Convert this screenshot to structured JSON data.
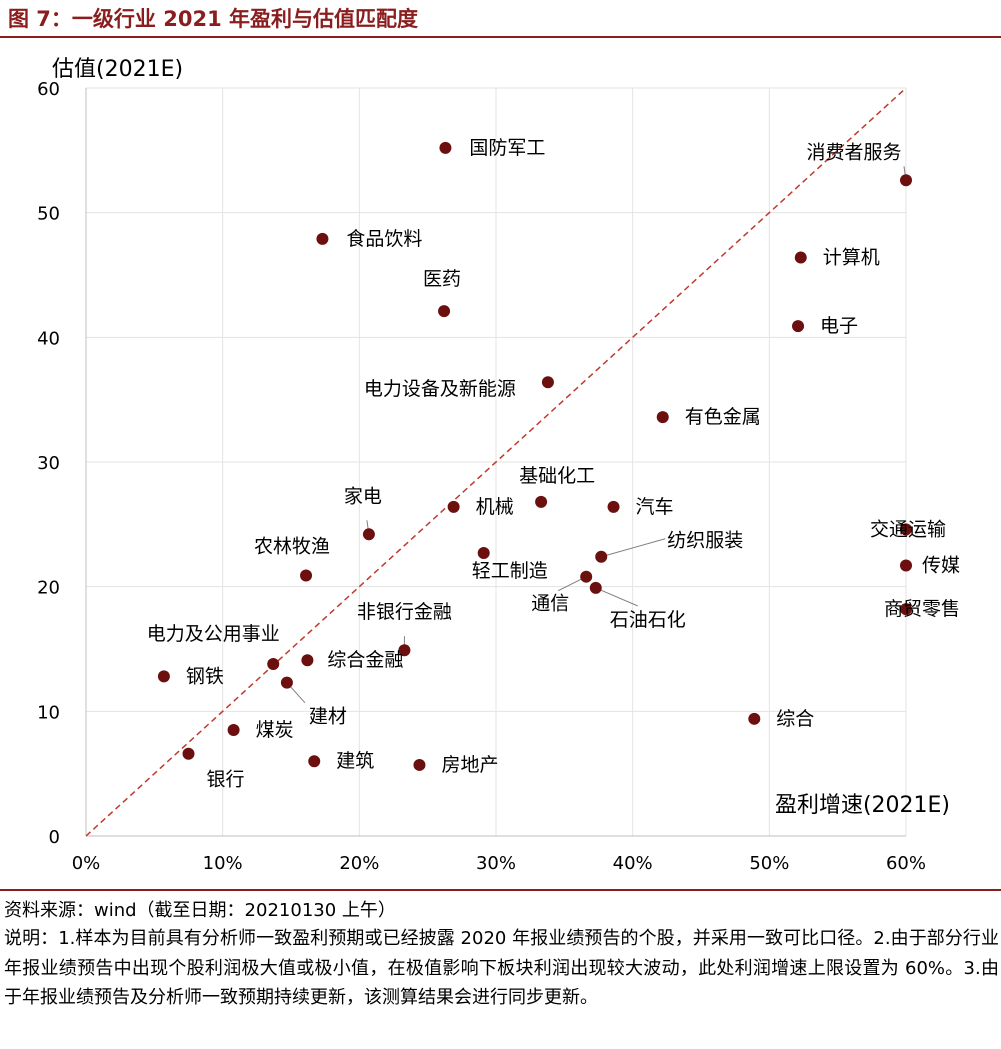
{
  "figure": {
    "title": "图 7：一级行业 2021 年盈利与估值匹配度",
    "source": "资料来源：wind（截至日期：20210130 上午）",
    "notes": "说明：1.样本为目前具有分析师一致盈利预期或已经披露 2020 年报业绩预告的个股，并采用一致可比口径。2.由于部分行业年报业绩预告中出现个股利润极大值或极小值，在极值影响下板块利润出现较大波动，此处利润增速上限设置为 60%。3.由于年报业绩预告及分析师一致预期持续更新，该测算结果会进行同步更新。"
  },
  "colors": {
    "accent": "#8a1d1d",
    "point": "#6b0f0f",
    "grid": "#e3e3e3",
    "diagonal": "#c0392b"
  },
  "chart_data": {
    "type": "scatter",
    "title": "一级行业 2021 年盈利与估值匹配度",
    "xlabel": "盈利增速(2021E)",
    "ylabel": "估值(2021E)",
    "xlim": [
      0,
      0.6
    ],
    "ylim": [
      0,
      60
    ],
    "xticks": [
      0,
      0.1,
      0.2,
      0.3,
      0.4,
      0.5,
      0.6
    ],
    "xtick_labels": [
      "0%",
      "10%",
      "20%",
      "30%",
      "40%",
      "50%",
      "60%"
    ],
    "yticks": [
      0,
      10,
      20,
      30,
      40,
      50,
      60
    ],
    "ytick_labels": [
      "0",
      "10",
      "20",
      "30",
      "40",
      "50",
      "60"
    ],
    "grid": true,
    "reference_line": {
      "style": "dashed",
      "from": [
        0,
        0
      ],
      "to": [
        0.6,
        60
      ]
    },
    "points": [
      {
        "name": "国防军工",
        "x": 0.263,
        "y": 55.2
      },
      {
        "name": "消费者服务",
        "x": 0.6,
        "y": 52.6
      },
      {
        "name": "食品饮料",
        "x": 0.173,
        "y": 47.9
      },
      {
        "name": "计算机",
        "x": 0.523,
        "y": 46.4
      },
      {
        "name": "医药",
        "x": 0.262,
        "y": 42.1
      },
      {
        "name": "电子",
        "x": 0.521,
        "y": 40.9
      },
      {
        "name": "电力设备及新能源",
        "x": 0.338,
        "y": 36.4
      },
      {
        "name": "有色金属",
        "x": 0.422,
        "y": 33.6
      },
      {
        "name": "基础化工",
        "x": 0.333,
        "y": 26.8
      },
      {
        "name": "汽车",
        "x": 0.386,
        "y": 26.4
      },
      {
        "name": "机械",
        "x": 0.269,
        "y": 26.4
      },
      {
        "name": "交通运输",
        "x": 0.6,
        "y": 24.6
      },
      {
        "name": "家电",
        "x": 0.207,
        "y": 24.2
      },
      {
        "name": "纺织服装",
        "x": 0.377,
        "y": 22.4
      },
      {
        "name": "轻工制造",
        "x": 0.291,
        "y": 22.7
      },
      {
        "name": "传媒",
        "x": 0.6,
        "y": 21.7
      },
      {
        "name": "农林牧渔",
        "x": 0.161,
        "y": 20.9
      },
      {
        "name": "通信",
        "x": 0.366,
        "y": 20.8
      },
      {
        "name": "石油石化",
        "x": 0.373,
        "y": 19.9
      },
      {
        "name": "商贸零售",
        "x": 0.6,
        "y": 18.2
      },
      {
        "name": "非银行金融",
        "x": 0.233,
        "y": 14.9
      },
      {
        "name": "综合金融",
        "x": 0.162,
        "y": 14.1
      },
      {
        "name": "电力及公用事业",
        "x": 0.137,
        "y": 13.8
      },
      {
        "name": "钢铁",
        "x": 0.057,
        "y": 12.8
      },
      {
        "name": "建材",
        "x": 0.147,
        "y": 12.3
      },
      {
        "name": "综合",
        "x": 0.489,
        "y": 9.4
      },
      {
        "name": "煤炭",
        "x": 0.108,
        "y": 8.5
      },
      {
        "name": "银行",
        "x": 0.075,
        "y": 6.6
      },
      {
        "name": "建筑",
        "x": 0.167,
        "y": 6.0
      },
      {
        "name": "房地产",
        "x": 0.244,
        "y": 5.7
      }
    ]
  }
}
